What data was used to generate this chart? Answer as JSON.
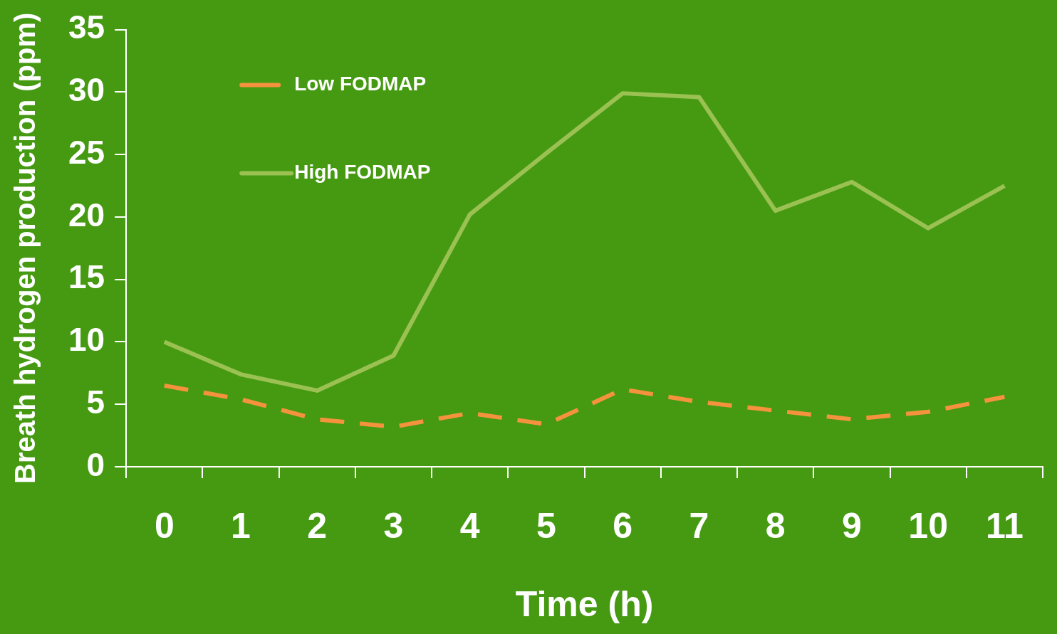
{
  "chart_data": {
    "type": "line",
    "xlabel": "Time (h)",
    "ylabel": "Breath hydrogen production (ppm)",
    "categories": [
      "0",
      "1",
      "2",
      "3",
      "4",
      "5",
      "6",
      "7",
      "8",
      "9",
      "10",
      "11"
    ],
    "series": [
      {
        "name": "Low FODMAP",
        "color": "#f5923e",
        "line_style": "dashed",
        "values": [
          6.5,
          5.4,
          3.8,
          3.2,
          4.3,
          3.4,
          6.2,
          5.2,
          4.5,
          3.8,
          4.4,
          5.6
        ]
      },
      {
        "name": "High FODMAP",
        "color": "#9bc152",
        "line_style": "solid",
        "values": [
          10.0,
          7.4,
          6.1,
          8.9,
          20.2,
          25.1,
          29.9,
          29.6,
          20.5,
          22.8,
          19.1,
          22.5
        ]
      }
    ],
    "ylim": [
      0,
      35
    ],
    "yticks": [
      0,
      5,
      10,
      15,
      20,
      25,
      30,
      35
    ],
    "grid": false,
    "legend": "top left",
    "marker": "none"
  }
}
